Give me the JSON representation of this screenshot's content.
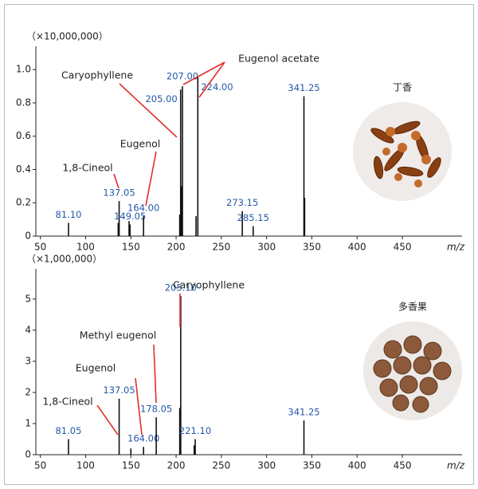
{
  "chart_data": [
    {
      "type": "stem",
      "y_scale_label": "（×10,000,000）",
      "xlabel": "m/z",
      "sample_label": "丁香",
      "xlim": [
        45,
        516
      ],
      "xticks": [
        50,
        100,
        150,
        200,
        250,
        300,
        350,
        400,
        450
      ],
      "ylim": [
        0,
        1.14
      ],
      "yticks": [
        0,
        0.2,
        0.4,
        0.6,
        0.8,
        {
          "value": 1,
          "label": "1.0"
        }
      ],
      "color": "#111111",
      "label_color": "#2458a8",
      "annotation_color": "#e0302a",
      "x": [
        81.1,
        136.0,
        137.05,
        148.0,
        149.05,
        164.0,
        204.0,
        205.0,
        206.0,
        207.0,
        222.0,
        224.0,
        273.15,
        285.15,
        341.25,
        342.0
      ],
      "values": [
        0.08,
        0.08,
        0.21,
        0.09,
        0.07,
        0.12,
        0.13,
        0.88,
        0.3,
        0.9,
        0.12,
        0.96,
        0.15,
        0.06,
        0.84,
        0.23
      ],
      "peak_labels": [
        "81.10",
        null,
        "137.05",
        null,
        "149.05",
        "164.00",
        null,
        "205.00",
        null,
        "207.00",
        null,
        "224.00",
        "273.15",
        "285.15",
        "341.25",
        null
      ],
      "annotations": [
        "Caryophyllene",
        "Eugenol acetate",
        "Eugenol",
        "1,8-Cineol"
      ]
    },
    {
      "type": "stem",
      "y_scale_label": "（×1,000,000）",
      "xlabel": "m/z",
      "sample_label": "多香果",
      "xlim": [
        45,
        516
      ],
      "xticks": [
        50,
        100,
        150,
        200,
        250,
        300,
        350,
        400,
        450
      ],
      "ylim": [
        0,
        5.97
      ],
      "yticks": [
        0,
        1,
        2,
        3,
        4,
        5
      ],
      "color": "#111111",
      "label_color": "#2458a8",
      "annotation_color": "#e0302a",
      "x": [
        81.05,
        137.05,
        150.0,
        164.0,
        178.05,
        204.0,
        205.1,
        220.0,
        221.1,
        341.25
      ],
      "values": [
        0.5,
        1.8,
        0.2,
        0.25,
        1.2,
        1.5,
        5.1,
        0.3,
        0.5,
        1.1
      ],
      "peak_labels": [
        "81.05",
        "137.05",
        null,
        "164.00",
        "178.05",
        null,
        "205.10",
        null,
        "221.10",
        "341.25"
      ],
      "annotations": [
        "Caryophyllene",
        "Methyl eugenol",
        "Eugenol",
        "1,8-Cineol"
      ]
    }
  ]
}
